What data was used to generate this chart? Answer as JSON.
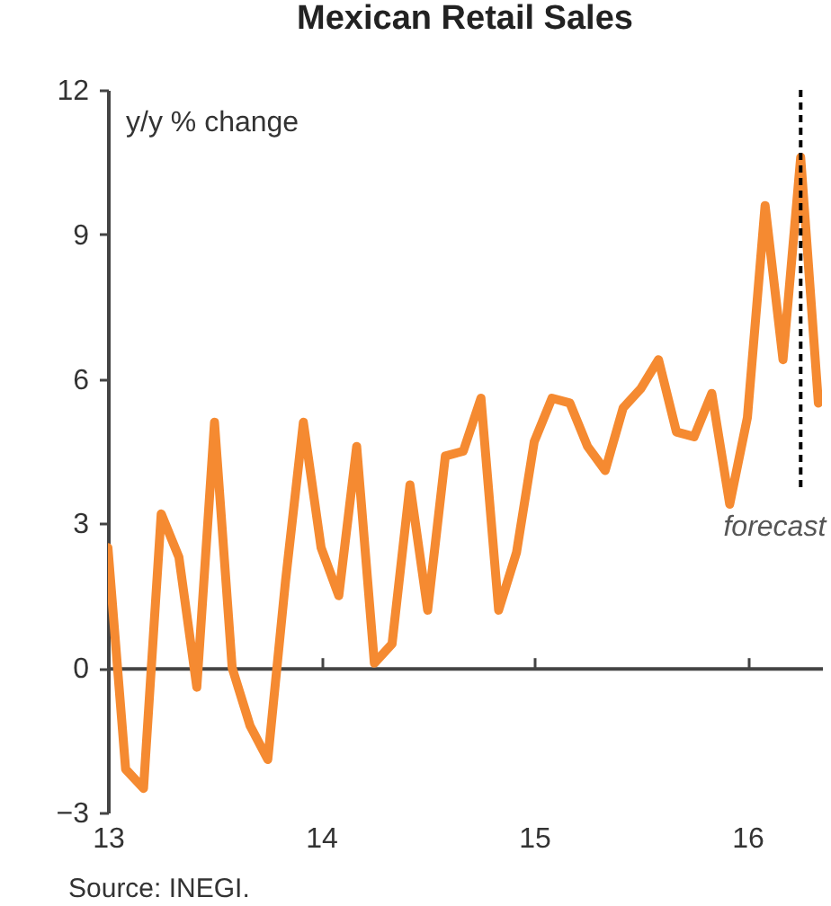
{
  "chart_data": {
    "type": "line",
    "title": "Mexican Retail Sales",
    "ylabel": "y/y % change",
    "annotations": [
      "Source: INEGI."
    ],
    "x": [
      13,
      13.083,
      13.167,
      13.25,
      13.333,
      13.417,
      13.5,
      13.583,
      13.667,
      13.75,
      13.833,
      13.917,
      14,
      14.083,
      14.167,
      14.25,
      14.333,
      14.417,
      14.5,
      14.583,
      14.667,
      14.75,
      14.833,
      14.917,
      15,
      15.083,
      15.167,
      15.25,
      15.333,
      15.417,
      15.5,
      15.583,
      15.667,
      15.75,
      15.833,
      15.917,
      16,
      16.083,
      16.167,
      16.25,
      16.333
    ],
    "series": [
      {
        "color": "#f58a31",
        "values": [
          2.5,
          -2.1,
          -2.5,
          3.2,
          2.3,
          -0.4,
          5.1,
          0.0,
          -1.2,
          -1.9,
          1.8,
          5.1,
          2.5,
          1.5,
          4.6,
          0.1,
          0.5,
          3.8,
          1.2,
          4.4,
          4.5,
          5.6,
          1.2,
          2.4,
          4.7,
          5.6,
          5.5,
          4.6,
          4.1,
          5.4,
          5.8,
          6.4,
          4.9,
          4.8,
          5.7,
          3.4,
          5.2,
          9.6,
          6.4,
          10.6,
          5.5
        ]
      }
    ],
    "xlim": [
      13,
      16.35
    ],
    "xticks": [
      13,
      14,
      15,
      16
    ],
    "ylim": [
      -3,
      12
    ],
    "yticks": [
      -3,
      0,
      3,
      6,
      9,
      12
    ],
    "ref_lines": [
      {
        "axis": "x",
        "value": 16.25,
        "label": "forecast",
        "color": "#000000",
        "line_style": "dashed"
      }
    ]
  }
}
